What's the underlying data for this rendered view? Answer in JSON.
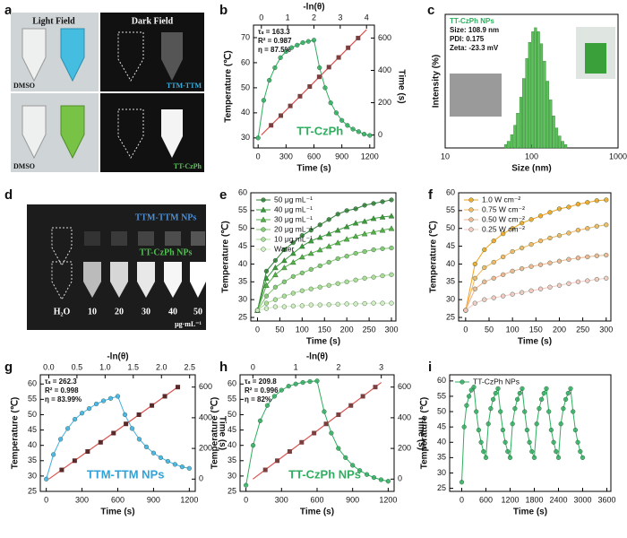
{
  "photos": [
    {
      "panel": "a",
      "headers": [
        "Light Field",
        "Dark Field"
      ],
      "labels": [
        "DMSO",
        "TTM-TTM",
        "DMSO",
        "TT-CzPh"
      ]
    },
    {
      "panel": "d",
      "rows": [
        "TTM-TTM NPs",
        "TT-CzPh NPs"
      ],
      "concentrations": [
        "H₂O",
        "10",
        "20",
        "30",
        "40",
        "50"
      ],
      "unit": "μg·mL⁻¹"
    }
  ],
  "chart_data": [
    {
      "panel": "b",
      "type": "line",
      "xlabel": "Time (s)",
      "ylabel": "Temperature (℃)",
      "x2label": "-ln(θ)",
      "y2label": "Time (s)",
      "xlim": [
        -50,
        1250
      ],
      "xticks": [
        0,
        300,
        600,
        900,
        1200
      ],
      "ylim": [
        26,
        75
      ],
      "yticks": [
        30,
        40,
        50,
        60,
        70
      ],
      "x2lim": [
        -0.3,
        4.3
      ],
      "x2ticks": [
        0,
        1,
        2,
        3,
        4
      ],
      "y2lim": [
        -80,
        680
      ],
      "y2ticks": [
        0,
        200,
        400,
        600
      ],
      "annotations": [
        "τₛ = 163.3",
        "R² = 0.987",
        "η = 87.5%"
      ],
      "callout": {
        "text": "TT-CzPh",
        "color": "#2fae5f"
      },
      "series": [
        {
          "color": "#2fae5f",
          "marker": "circle",
          "line": true,
          "x": [
            0,
            60,
            120,
            180,
            240,
            300,
            360,
            420,
            480,
            540,
            600,
            660,
            720,
            780,
            840,
            900,
            960,
            1020,
            1080,
            1140,
            1200
          ],
          "values": [
            30,
            45,
            53,
            58,
            62,
            64.5,
            66,
            67,
            68,
            68.5,
            69,
            58,
            50,
            44,
            40,
            37,
            35,
            33.5,
            32.5,
            31.5,
            31
          ]
        },
        {
          "color": "#d9534f",
          "marker": "none",
          "line": true,
          "axis": "y2",
          "x": [
            0,
            4
          ],
          "values": [
            0,
            652
          ]
        },
        {
          "color": "#7b3f3f",
          "marker": "square",
          "line": false,
          "axis": "y2",
          "x": [
            0.37,
            0.74,
            1.1,
            1.47,
            1.84,
            2.2,
            2.57,
            2.94,
            3.3,
            3.68
          ],
          "values": [
            60,
            120,
            180,
            240,
            300,
            360,
            420,
            480,
            540,
            600
          ]
        }
      ]
    },
    {
      "panel": "c",
      "type": "bar",
      "xlog": true,
      "xlabel": "Size (nm)",
      "ylabel": "Intensity (%)",
      "xlim": [
        10,
        1000
      ],
      "xticks": [
        10,
        100,
        1000
      ],
      "ylim": [
        0,
        10
      ],
      "annotations": [
        "TT-CzPh NPs",
        "Size: 108.9 nm",
        "PDI: 0.175",
        "Zeta: -23.3 mV"
      ],
      "series": [
        {
          "color": "#5cc15a",
          "x": [
            50,
            54,
            59,
            64,
            69,
            75,
            81,
            88,
            95,
            103,
            111,
            120,
            130,
            141,
            153,
            166,
            180,
            195,
            211,
            229,
            248
          ],
          "values": [
            0.26,
            0.5,
            1,
            1.7,
            2.6,
            3.8,
            5.2,
            6.7,
            7.9,
            8.7,
            9,
            8.7,
            7.8,
            6.5,
            5,
            3.6,
            2.4,
            1.5,
            0.9,
            0.5,
            0.25
          ]
        }
      ]
    },
    {
      "panel": "e",
      "type": "line",
      "xlabel": "Time (s)",
      "ylabel": "Temperature (℃)",
      "legend": "upper left",
      "xlim": [
        -15,
        310
      ],
      "xticks": [
        0,
        50,
        100,
        150,
        200,
        250,
        300
      ],
      "ylim": [
        24,
        60
      ],
      "yticks": [
        25,
        30,
        35,
        40,
        45,
        50,
        55,
        60
      ],
      "x": [
        0,
        20,
        40,
        60,
        80,
        100,
        120,
        140,
        160,
        180,
        200,
        220,
        240,
        260,
        280,
        300
      ],
      "series": [
        {
          "name": "50 μg mL⁻¹",
          "color": "#2e7d32",
          "marker": "circle",
          "line": true,
          "values": [
            27,
            38,
            41,
            44,
            46,
            48,
            49.5,
            51,
            52.5,
            54,
            55,
            55.5,
            56.5,
            57,
            57.5,
            58
          ]
        },
        {
          "name": "40 μg mL⁻¹",
          "color": "#3c9a3c",
          "marker": "triangle",
          "line": true,
          "values": [
            27,
            36,
            39,
            41,
            43,
            45,
            46.5,
            47.5,
            48.5,
            49.5,
            50.5,
            51.5,
            52,
            52.8,
            53.2,
            53.5
          ]
        },
        {
          "name": "30 μg mL⁻¹",
          "color": "#56b04a",
          "marker": "triangle",
          "line": true,
          "values": [
            27,
            34,
            37,
            39,
            40.5,
            42,
            43,
            44,
            45,
            46,
            47,
            47.8,
            48.5,
            49,
            49.5,
            50
          ]
        },
        {
          "name": "20 μg mL⁻¹",
          "color": "#7cc46b",
          "marker": "circle",
          "line": true,
          "values": [
            27,
            31,
            33.5,
            35,
            36.5,
            37.5,
            38.5,
            39.5,
            40.5,
            41.5,
            42.2,
            43,
            43.5,
            44,
            44.3,
            44.5
          ]
        },
        {
          "name": "10 μg mL⁻¹",
          "color": "#a6d98f",
          "marker": "circle",
          "line": true,
          "values": [
            27,
            29,
            30,
            31,
            31.8,
            32.5,
            33,
            33.5,
            34,
            34.5,
            35,
            35.5,
            36,
            36.3,
            36.7,
            37
          ]
        },
        {
          "name": "Water",
          "color": "#d0ecc0",
          "marker": "circle",
          "line": true,
          "values": [
            27,
            27.5,
            28,
            28,
            28.2,
            28.3,
            28.5,
            28.5,
            28.6,
            28.7,
            28.8,
            28.8,
            28.9,
            29,
            29,
            29
          ]
        }
      ]
    },
    {
      "panel": "f",
      "type": "line",
      "xlabel": "Time (s)",
      "ylabel": "Temperature (℃)",
      "legend": "upper left",
      "xlim": [
        -15,
        310
      ],
      "xticks": [
        0,
        50,
        100,
        150,
        200,
        250,
        300
      ],
      "ylim": [
        24,
        60
      ],
      "yticks": [
        25,
        30,
        35,
        40,
        45,
        50,
        55,
        60
      ],
      "x": [
        0,
        20,
        40,
        60,
        80,
        100,
        120,
        140,
        160,
        180,
        200,
        220,
        240,
        260,
        280,
        300
      ],
      "series": [
        {
          "name": "1.0 W cm⁻²",
          "color": "#eea21f",
          "marker": "circle",
          "line": true,
          "values": [
            27,
            40,
            44,
            46.5,
            48.5,
            50,
            51.5,
            52.5,
            53.5,
            54.5,
            55.5,
            56,
            56.8,
            57.3,
            57.8,
            58
          ]
        },
        {
          "name": "0.75 W cm⁻²",
          "color": "#f2b35a",
          "marker": "circle",
          "line": true,
          "values": [
            27,
            36,
            39,
            40.5,
            42,
            43.5,
            44.5,
            45.5,
            46.5,
            47.3,
            48,
            48.7,
            49.5,
            50,
            50.6,
            51
          ]
        },
        {
          "name": "0.50 W cm⁻²",
          "color": "#eeb28d",
          "marker": "circle",
          "line": true,
          "values": [
            27,
            33,
            35,
            36,
            37,
            38,
            38.7,
            39.3,
            39.8,
            40.3,
            40.8,
            41.3,
            41.7,
            42,
            42.3,
            42.5
          ]
        },
        {
          "name": "0.25 W cm⁻²",
          "color": "#f3c6c0",
          "marker": "circle",
          "line": true,
          "values": [
            27,
            29,
            30,
            30.5,
            31,
            31.5,
            32,
            32.5,
            33,
            33.5,
            34,
            34.5,
            35,
            35.3,
            35.7,
            36
          ]
        }
      ]
    },
    {
      "panel": "g",
      "type": "line",
      "xlabel": "Time (s)",
      "ylabel": "Temperature (℃)",
      "x2label": "-ln(θ)",
      "y2label": "Time (s)",
      "xlim": [
        -50,
        1250
      ],
      "xticks": [
        0,
        300,
        600,
        900,
        1200
      ],
      "ylim": [
        25,
        63
      ],
      "yticks": [
        25,
        30,
        35,
        40,
        45,
        50,
        55,
        60
      ],
      "x2lim": [
        -0.15,
        2.6
      ],
      "x2ticks": [
        {
          "value": 0,
          "label": "0.0"
        },
        0.5,
        {
          "value": 1,
          "label": "1.0"
        },
        1.5,
        {
          "value": 2,
          "label": "2.0"
        },
        2.5
      ],
      "y2lim": [
        -80,
        680
      ],
      "y2ticks": [
        0,
        200,
        400,
        600
      ],
      "annotations": [
        "τₛ = 262.3",
        "R² = 0.998",
        "η = 83.99%"
      ],
      "callout": {
        "text": "TTM-TTM NPs",
        "color": "#2fa3d9"
      },
      "series": [
        {
          "color": "#3fb0e0",
          "marker": "circle",
          "line": true,
          "x": [
            0,
            60,
            120,
            180,
            240,
            300,
            360,
            420,
            480,
            540,
            600,
            660,
            720,
            780,
            840,
            900,
            960,
            1020,
            1080,
            1140,
            1200
          ],
          "values": [
            29,
            37,
            42,
            45.5,
            48.5,
            50.5,
            52,
            53.5,
            54.5,
            55.3,
            56,
            50,
            45.5,
            42,
            39.5,
            37.5,
            36,
            34.8,
            33.8,
            33,
            32.5
          ]
        },
        {
          "color": "#d9534f",
          "marker": "none",
          "line": true,
          "axis": "y2",
          "x": [
            0,
            2.3
          ],
          "values": [
            0,
            603
          ]
        },
        {
          "color": "#5a2a2a",
          "marker": "square",
          "line": false,
          "axis": "y2",
          "x": [
            0.23,
            0.46,
            0.69,
            0.92,
            1.15,
            1.37,
            1.6,
            1.83,
            2.06,
            2.29
          ],
          "values": [
            60,
            120,
            180,
            240,
            300,
            360,
            420,
            480,
            540,
            600
          ]
        }
      ]
    },
    {
      "panel": "h",
      "type": "line",
      "xlabel": "Time (s)",
      "ylabel": "Temperature (℃)",
      "x2label": "-ln(θ)",
      "y2label": "Time (s)",
      "xlim": [
        -50,
        1250
      ],
      "xticks": [
        0,
        300,
        600,
        900,
        1200
      ],
      "ylim": [
        25,
        63
      ],
      "yticks": [
        25,
        30,
        35,
        40,
        45,
        50,
        55,
        60
      ],
      "x2lim": [
        -0.3,
        3.3
      ],
      "x2ticks": [
        0,
        1,
        2,
        3
      ],
      "y2lim": [
        -80,
        680
      ],
      "y2ticks": [
        0,
        200,
        400,
        600
      ],
      "annotations": [
        "τₛ = 209.8",
        "R² = 0.996",
        "η = 82%"
      ],
      "callout": {
        "text": "TT-CzPh NPs",
        "color": "#2fae5f"
      },
      "series": [
        {
          "color": "#2fae5f",
          "marker": "circle",
          "line": true,
          "x": [
            0,
            60,
            120,
            180,
            240,
            300,
            360,
            420,
            480,
            540,
            600,
            660,
            720,
            780,
            840,
            900,
            960,
            1020,
            1080,
            1140,
            1200
          ],
          "values": [
            27,
            40,
            48,
            53,
            56,
            58,
            59.3,
            60,
            60.5,
            60.8,
            61,
            51,
            44,
            39,
            36,
            33.5,
            31.8,
            30.5,
            29.5,
            28.8,
            28.3
          ]
        },
        {
          "color": "#d9534f",
          "marker": "none",
          "line": true,
          "axis": "y2",
          "x": [
            0,
            3
          ],
          "values": [
            0,
            630
          ]
        },
        {
          "color": "#7b3f3f",
          "marker": "square",
          "line": false,
          "axis": "y2",
          "x": [
            0.29,
            0.57,
            0.86,
            1.14,
            1.43,
            1.71,
            2.0,
            2.29,
            2.57,
            2.86
          ],
          "values": [
            60,
            120,
            180,
            240,
            300,
            360,
            420,
            480,
            540,
            600
          ]
        }
      ]
    },
    {
      "panel": "i",
      "type": "line",
      "xlabel": "Time (s)",
      "ylabel": "Temperature (℃)",
      "legend": "upper left",
      "xlim": [
        -300,
        3700
      ],
      "xticks": [
        0,
        600,
        1200,
        1800,
        2400,
        3000,
        3600
      ],
      "ylim": [
        24,
        62
      ],
      "yticks": [
        25,
        30,
        35,
        40,
        45,
        50,
        55,
        60
      ],
      "x": [
        0,
        60,
        120,
        180,
        240,
        300,
        360,
        420,
        480,
        540,
        600,
        660,
        720,
        780,
        840,
        900,
        960,
        1020,
        1080,
        1140,
        1200,
        1260,
        1320,
        1380,
        1440,
        1500,
        1560,
        1620,
        1680,
        1740,
        1800,
        1860,
        1920,
        1980,
        2040,
        2100,
        2160,
        2220,
        2280,
        2340,
        2400,
        2460,
        2520,
        2580,
        2640,
        2700,
        2760,
        2820,
        2880,
        2940,
        3000
      ],
      "series": [
        {
          "name": "TT-CzPh NPs",
          "color": "#2fae5f",
          "marker": "circle",
          "line": true,
          "values": [
            27,
            45,
            52,
            55,
            57,
            58,
            50,
            44,
            40,
            37,
            35,
            46,
            51,
            54,
            56,
            57.5,
            50,
            44,
            40,
            37,
            35,
            46,
            51,
            54,
            56,
            57.5,
            50,
            44,
            40,
            37,
            35,
            46,
            51,
            54,
            56,
            57.5,
            50,
            44,
            40,
            37,
            35,
            46,
            51,
            54,
            56,
            57.5,
            50,
            44,
            40,
            37,
            35
          ]
        }
      ]
    }
  ]
}
